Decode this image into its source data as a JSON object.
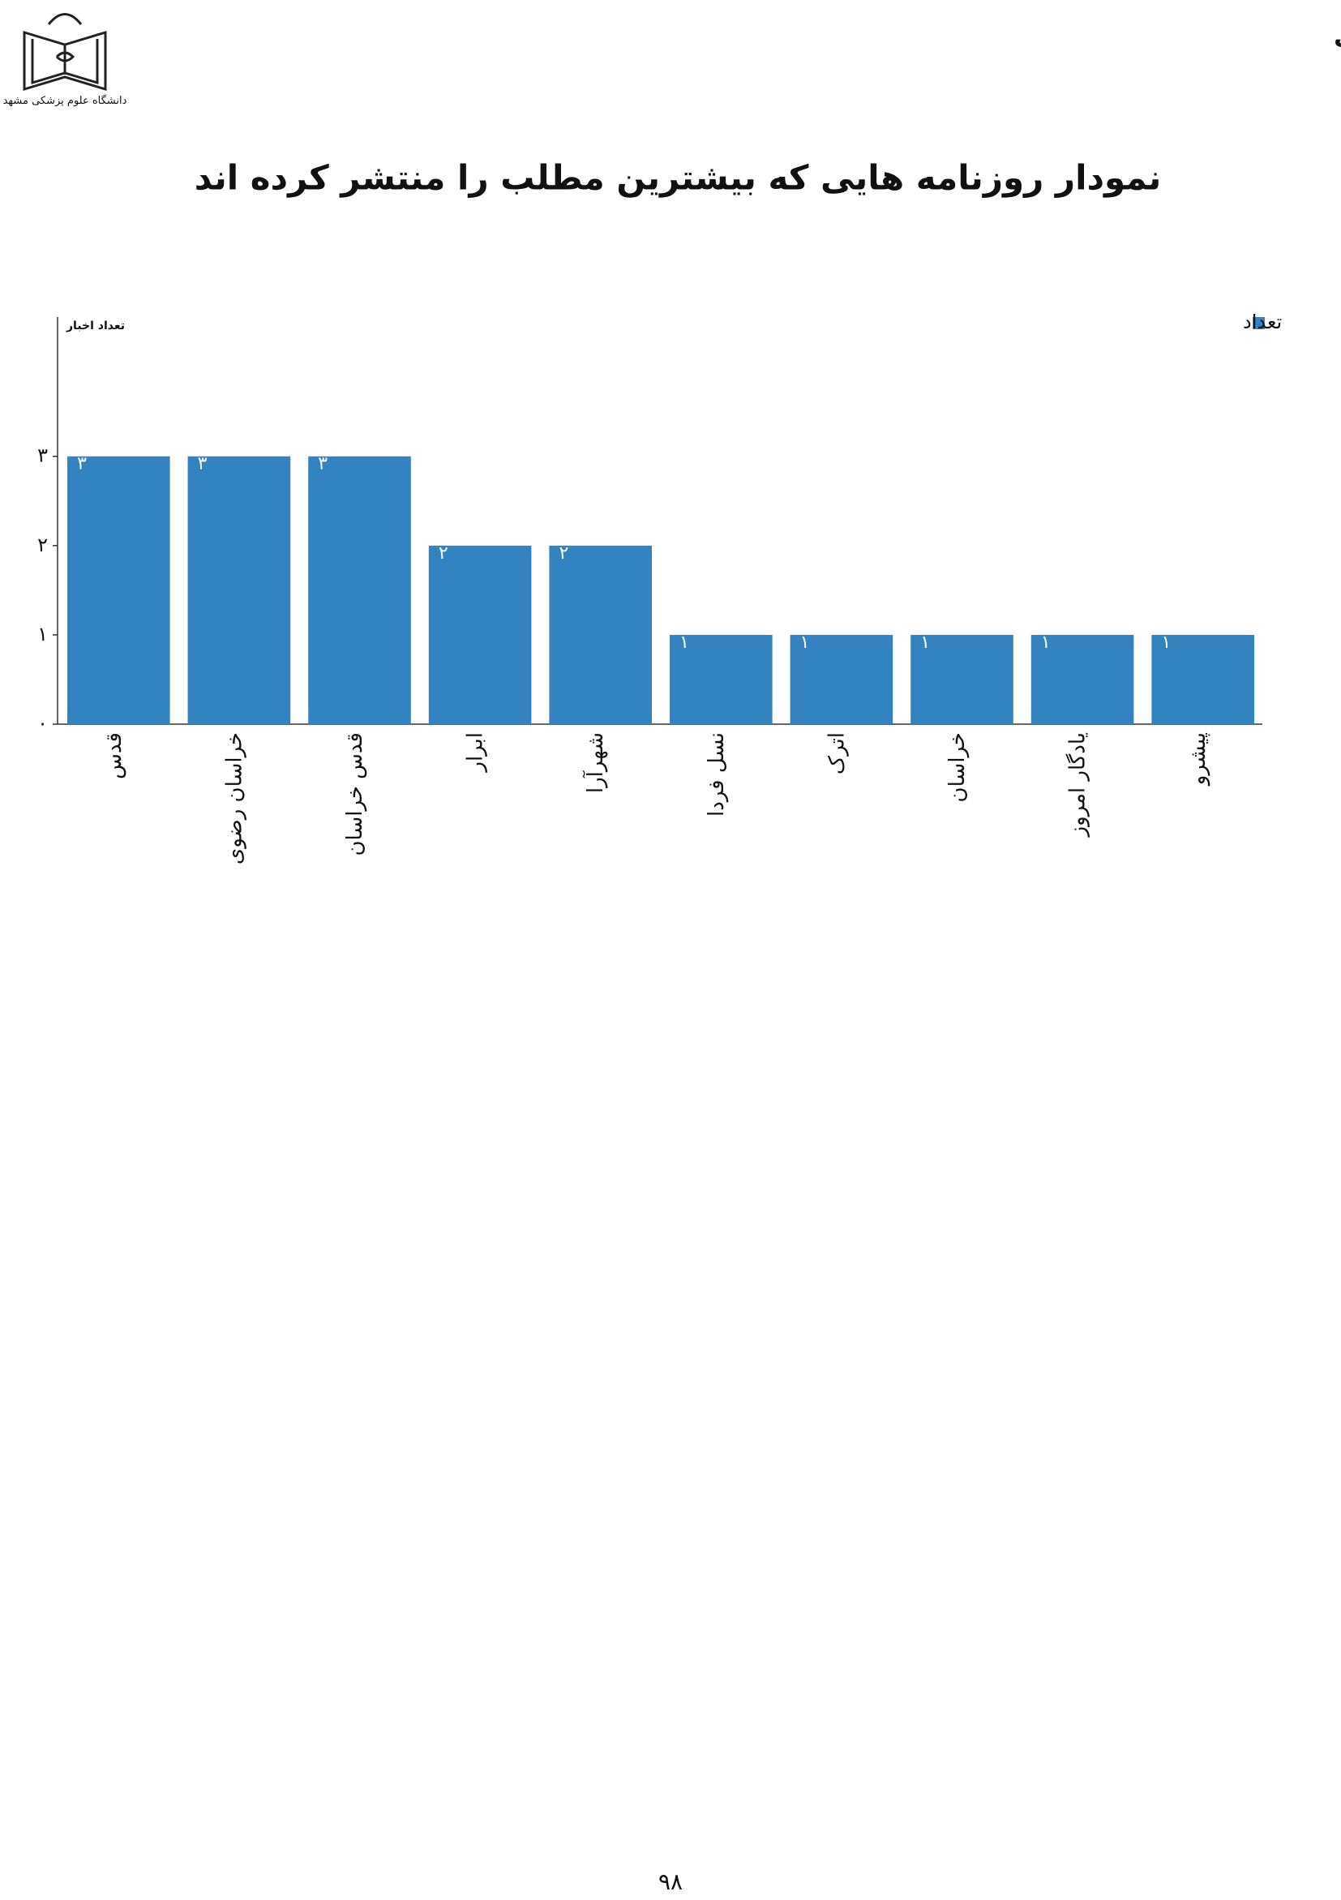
{
  "header": {
    "title": "انعکاس اخبار دانشگاه علوم پزشکی مشهد در رسانه های گروهی",
    "logo_text": "دانشگاه علوم پزشکی مشهد"
  },
  "chart_data": {
    "type": "bar",
    "title": "نمودار روزنامه هایی که بیشترین مطلب را منتشر کرده اند",
    "y_label": "تعداد اخبار",
    "categories": [
      "قدس",
      "خراسان رضوی",
      "قدس خراسان",
      "ابرار",
      "شهرآرا",
      "نسل فردا",
      "اترک",
      "خراسان",
      "یادگار امروز",
      "پیشرو"
    ],
    "series": [
      {
        "name": "تعداد",
        "color": "#3483c1",
        "values": [
          3,
          3,
          3,
          2,
          2,
          1,
          1,
          1,
          1,
          1
        ],
        "value_labels": [
          "۳",
          "۳",
          "۳",
          "۲",
          "۲",
          "۱",
          "۱",
          "۱",
          "۱",
          "۱"
        ]
      }
    ],
    "ylim": [
      0,
      4.56
    ],
    "yticks": [
      {
        "value": 0,
        "label": "۰"
      },
      {
        "value": 1,
        "label": "۱"
      },
      {
        "value": 2,
        "label": "۲"
      },
      {
        "value": 3,
        "label": "۳"
      }
    ],
    "legend": "top-right"
  },
  "footer": {
    "page_number": "۹۸"
  }
}
